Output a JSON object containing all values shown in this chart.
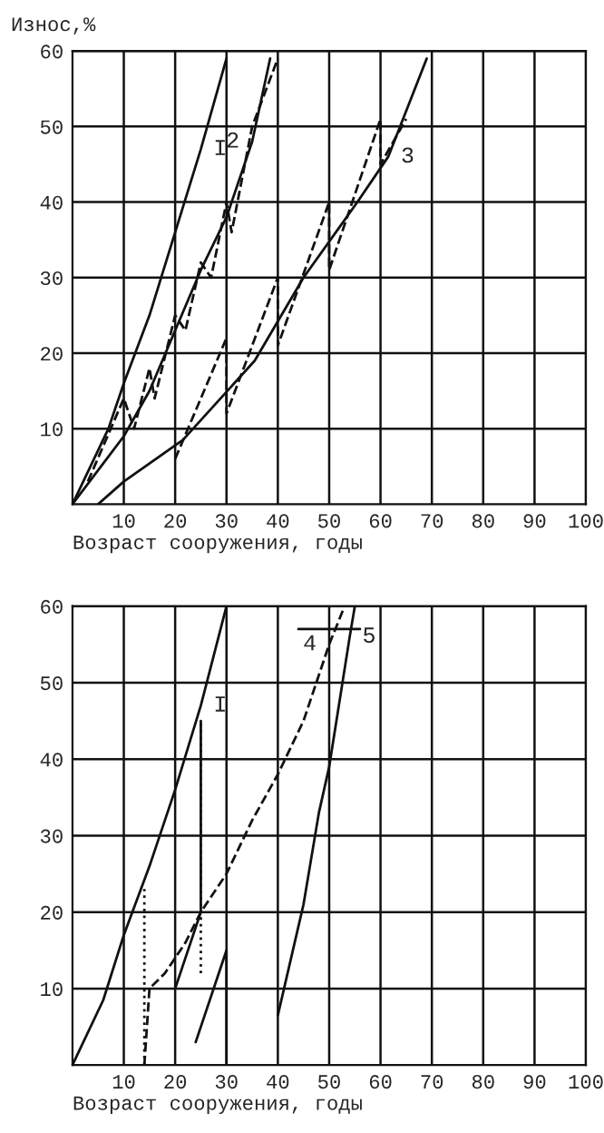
{
  "chart_data": [
    {
      "type": "line",
      "xlabel": "Возраст сооружения, годы",
      "ylabel": "Износ,%",
      "xlim": [
        0,
        100
      ],
      "ylim": [
        0,
        60
      ],
      "xticks": [
        10,
        20,
        30,
        40,
        50,
        60,
        70,
        80,
        90,
        100
      ],
      "yticks": [
        10,
        20,
        30,
        40,
        50,
        60
      ],
      "grid": true,
      "legend": false,
      "marker": "none",
      "series": [
        {
          "name": "I",
          "color": "#111111",
          "line_style": "solid",
          "x": [
            0,
            7,
            10,
            15,
            20,
            25,
            30
          ],
          "values": [
            0,
            10,
            16,
            25,
            36,
            47,
            59
          ]
        },
        {
          "name": "2",
          "color": "#111111",
          "line_style": "solid",
          "x": [
            0,
            10,
            15,
            20,
            25,
            30,
            35,
            38.5
          ],
          "values": [
            0,
            9,
            15,
            23,
            31,
            38,
            48,
            59
          ]
        },
        {
          "color": "#111111",
          "line_style": "dashed",
          "x": [
            3,
            10,
            12,
            15,
            16,
            20,
            22,
            25,
            27,
            30,
            31,
            35,
            40
          ],
          "values": [
            3,
            14,
            10,
            18,
            14,
            25,
            23,
            32,
            30,
            40,
            36,
            50,
            59
          ]
        },
        {
          "name": "3",
          "color": "#111111",
          "line_style": "solid",
          "x": [
            5,
            10,
            21.5,
            35.5,
            45,
            55.5,
            61.5,
            69
          ],
          "values": [
            0,
            3,
            8.5,
            19,
            30,
            40,
            46,
            59
          ]
        },
        {
          "color": "#111111",
          "line_style": "dashed",
          "x": [
            20,
            30,
            30,
            40,
            40,
            50,
            50,
            60,
            60,
            65
          ],
          "values": [
            6,
            22,
            12,
            30,
            21,
            40,
            31,
            51,
            45,
            51
          ]
        }
      ]
    },
    {
      "type": "line",
      "xlabel": "Возраст сооружения, годы",
      "xlim": [
        0,
        100
      ],
      "ylim": [
        0,
        60
      ],
      "xticks": [
        10,
        20,
        30,
        40,
        50,
        60,
        70,
        80,
        90,
        100
      ],
      "yticks": [
        10,
        20,
        30,
        40,
        50,
        60
      ],
      "grid": true,
      "legend": false,
      "marker": "none",
      "series": [
        {
          "name": "I",
          "color": "#111111",
          "line_style": "solid",
          "x": [
            0,
            6,
            10,
            15,
            20,
            25,
            30
          ],
          "values": [
            0,
            8.5,
            17,
            26,
            36,
            47,
            60
          ]
        },
        {
          "name": "4",
          "color": "#111111",
          "line_style": "dashed",
          "x": [
            14,
            15,
            18,
            22,
            25,
            30,
            35,
            40,
            45,
            50,
            53
          ],
          "values": [
            0,
            10,
            12,
            16,
            20,
            25,
            32,
            38,
            45,
            55,
            60
          ]
        },
        {
          "color": "#111111",
          "line_style": "solid",
          "x": [
            24,
            30,
            30
          ],
          "values": [
            3,
            15,
            0
          ]
        },
        {
          "color": "#111111",
          "line_style": "solid",
          "x": [
            20,
            25,
            25
          ],
          "values": [
            10,
            20,
            45
          ]
        },
        {
          "color": "#111111",
          "line_style": "dotted",
          "x": [
            14,
            14
          ],
          "values": [
            0,
            23
          ]
        },
        {
          "color": "#111111",
          "line_style": "dotted",
          "x": [
            25,
            25
          ],
          "values": [
            12,
            45
          ]
        },
        {
          "name": "5",
          "color": "#111111",
          "line_style": "solid",
          "x": [
            40,
            45,
            48,
            50,
            54,
            55
          ],
          "values": [
            6.5,
            21,
            33,
            39,
            56,
            60
          ]
        },
        {
          "color": "#111111",
          "line_style": "solid",
          "x": [
            44,
            56
          ],
          "values": [
            57,
            57
          ]
        }
      ]
    }
  ]
}
